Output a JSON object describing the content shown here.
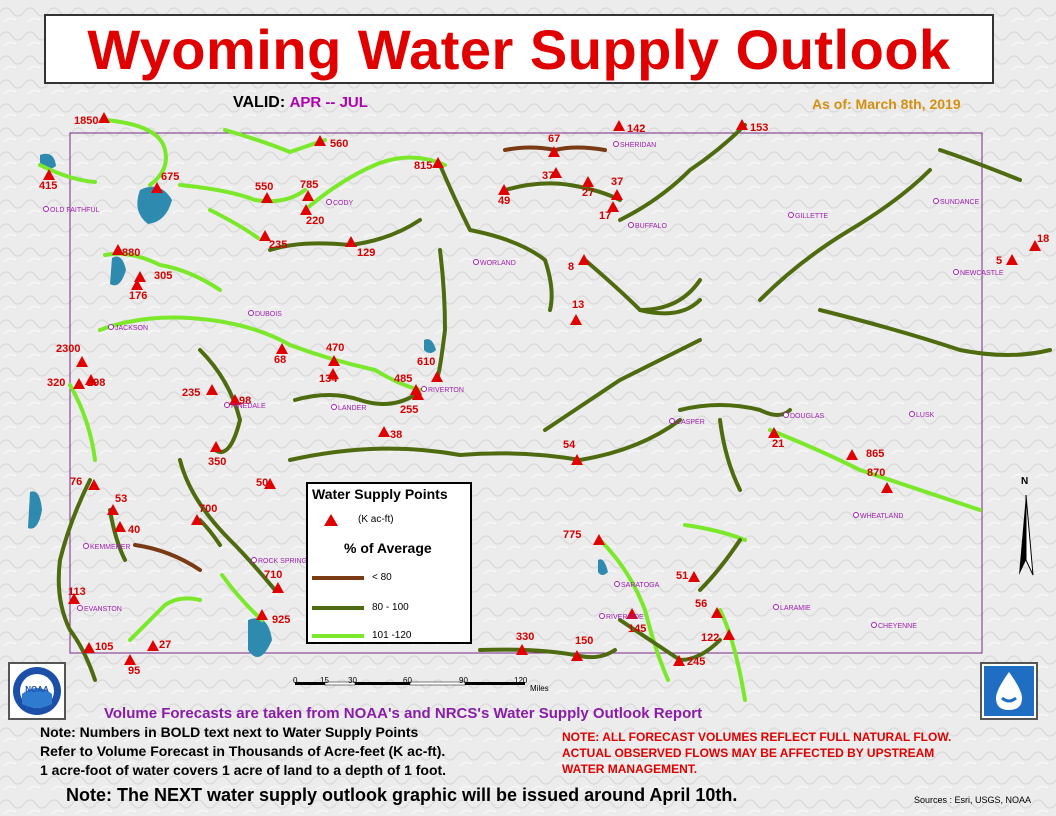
{
  "map": {
    "title": "Wyoming Water Supply Outlook",
    "valid_label": "VALID:",
    "valid_period": "APR -- JUL",
    "as_of": "As of:  March 8th, 2019"
  },
  "legend": {
    "title": "Water Supply Points",
    "points_unit": "(K ac-ft)",
    "percent_title": "% of Average",
    "categories": [
      {
        "label": "< 80",
        "color": "#7a3a14"
      },
      {
        "label": "80 - 100",
        "color": "#4f6b10"
      },
      {
        "label": "101 -120",
        "color": "#7be82b"
      }
    ]
  },
  "forecast_points": [
    {
      "value": "1850"
    },
    {
      "value": "560"
    },
    {
      "value": "415"
    },
    {
      "value": "675"
    },
    {
      "value": "550"
    },
    {
      "value": "785"
    },
    {
      "value": "220"
    },
    {
      "value": "235"
    },
    {
      "value": "815"
    },
    {
      "value": "49"
    },
    {
      "value": "67"
    },
    {
      "value": "142"
    },
    {
      "value": "153"
    },
    {
      "value": "37"
    },
    {
      "value": "27"
    },
    {
      "value": "37"
    },
    {
      "value": "17"
    },
    {
      "value": "880"
    },
    {
      "value": "129"
    },
    {
      "value": "305"
    },
    {
      "value": "176"
    },
    {
      "value": "8"
    },
    {
      "value": "5"
    },
    {
      "value": "18"
    },
    {
      "value": "13"
    },
    {
      "value": "2300"
    },
    {
      "value": "320"
    },
    {
      "value": "298"
    },
    {
      "value": "68"
    },
    {
      "value": "470"
    },
    {
      "value": "134"
    },
    {
      "value": "610"
    },
    {
      "value": "485"
    },
    {
      "value": "255"
    },
    {
      "value": "235"
    },
    {
      "value": "98"
    },
    {
      "value": "38"
    },
    {
      "value": "350"
    },
    {
      "value": "54"
    },
    {
      "value": "21"
    },
    {
      "value": "865"
    },
    {
      "value": "870"
    },
    {
      "value": "50"
    },
    {
      "value": "76"
    },
    {
      "value": "53"
    },
    {
      "value": "40"
    },
    {
      "value": "700"
    },
    {
      "value": "775"
    },
    {
      "value": "710"
    },
    {
      "value": "51"
    },
    {
      "value": "113"
    },
    {
      "value": "925"
    },
    {
      "value": "56"
    },
    {
      "value": "145"
    },
    {
      "value": "330"
    },
    {
      "value": "150"
    },
    {
      "value": "122"
    },
    {
      "value": "105"
    },
    {
      "value": "27"
    },
    {
      "value": "95"
    },
    {
      "value": "245"
    }
  ],
  "towns": [
    "OLD FAITHFUL",
    "CODY",
    "SHERIDAN",
    "BUFFALO",
    "GILLETTE",
    "SUNDANCE",
    "NEWCASTLE",
    "WORLAND",
    "JACKSON",
    "DUBOIS",
    "PINEDALE",
    "LANDER",
    "RIVERTON",
    "CASPER",
    "DOUGLAS",
    "LUSK",
    "WHEATLAND",
    "KEMMERER",
    "ROCK SPRINGS",
    "EVANSTON",
    "SARATOGA",
    "RIVERSIDE",
    "LARAMIE",
    "CHEYENNE"
  ],
  "scale": {
    "ticks": [
      "0",
      "15",
      "30",
      "60",
      "90",
      "120"
    ],
    "unit": "Miles"
  },
  "north_label": "N",
  "notes": {
    "nws_source": "Volume Forecasts are taken from NOAA's and NRCS's Water Supply Outlook Report",
    "bold_note_1": "Note:  Numbers in BOLD text next to Water Supply Points",
    "bold_note_2": "Refer to Volume Forecast in Thousands of Acre-feet (K ac-ft).",
    "bold_note_3": "1 acre-foot of water covers 1 acre of land to a depth of 1 foot.",
    "red_note_1": "NOTE:  ALL FORECAST VOLUMES REFLECT FULL NATURAL FLOW.",
    "red_note_2": "ACTUAL OBSERVED FLOWS MAY BE AFFECTED BY UPSTREAM",
    "red_note_3": "WATER MANAGEMENT.",
    "next_issue": "Note:  The NEXT water supply outlook graphic will be issued around April 10th.",
    "sources": "Sources : Esri, USGS, NOAA"
  },
  "logos": {
    "left": "NOAA",
    "right": "nws-water-drop-icon"
  }
}
